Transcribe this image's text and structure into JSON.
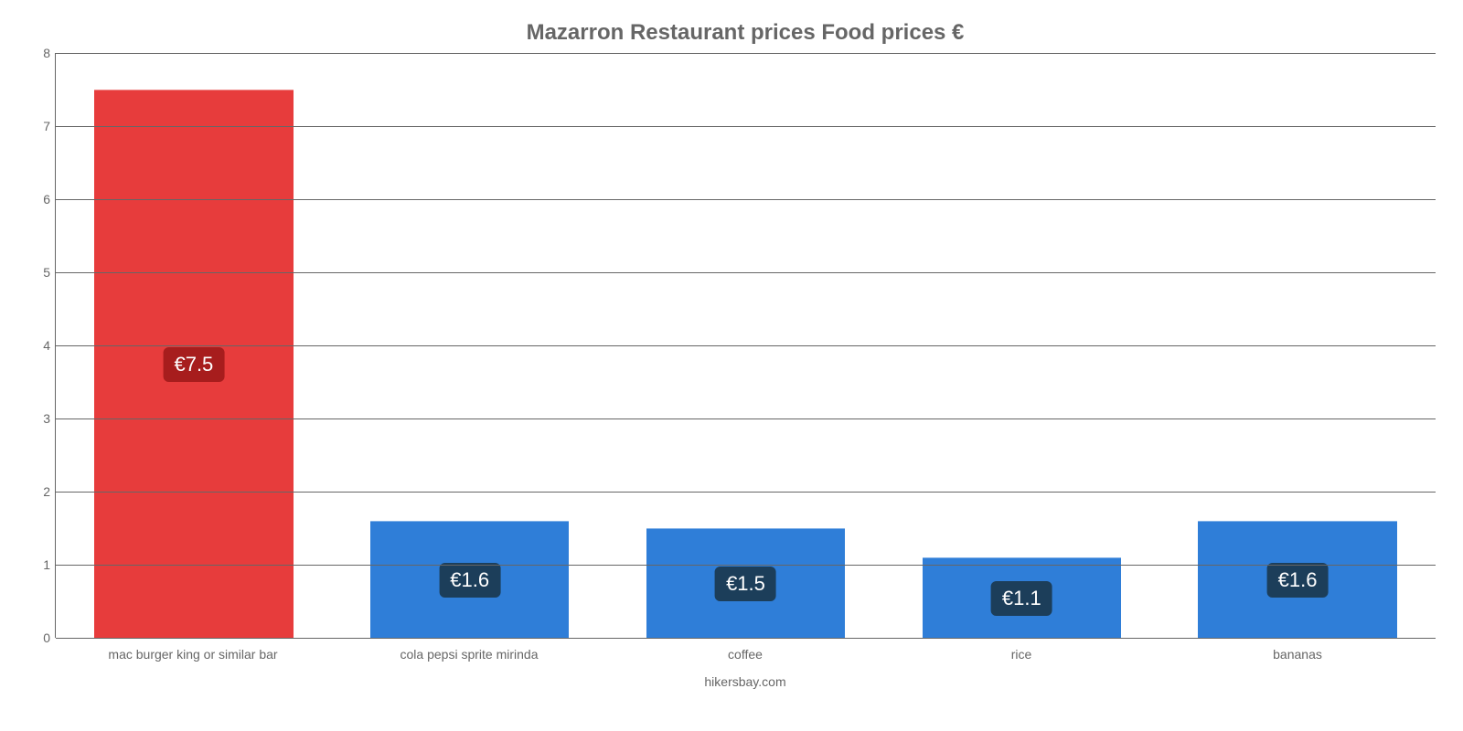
{
  "chart": {
    "type": "bar",
    "title": "Mazarron Restaurant prices Food prices €",
    "title_fontsize": 24,
    "title_color": "#666666",
    "background_color": "#ffffff",
    "axis_color": "#666666",
    "grid_color": "#666666",
    "tick_fontsize": 14,
    "tick_color": "#666666",
    "ylim": [
      0,
      8
    ],
    "ytick_step": 1,
    "yticks": [
      0,
      1,
      2,
      3,
      4,
      5,
      6,
      7,
      8
    ],
    "bar_width": 0.72,
    "categories": [
      "mac burger king or similar bar",
      "cola pepsi sprite mirinda",
      "coffee",
      "rice",
      "bananas"
    ],
    "values": [
      7.5,
      1.6,
      1.5,
      1.1,
      1.6
    ],
    "value_labels": [
      "€7.5",
      "€1.6",
      "€1.5",
      "€1.1",
      "€1.6"
    ],
    "bar_colors": [
      "#e73c3c",
      "#2f7ed8",
      "#2f7ed8",
      "#2f7ed8",
      "#2f7ed8"
    ],
    "label_bg_colors": [
      "#a71d1d",
      "#1c3e5a",
      "#1c3e5a",
      "#1c3e5a",
      "#1c3e5a"
    ],
    "label_text_color": "#ffffff",
    "label_fontsize": 22,
    "credit": "hikersbay.com",
    "credit_color": "#666666",
    "credit_fontsize": 14
  }
}
